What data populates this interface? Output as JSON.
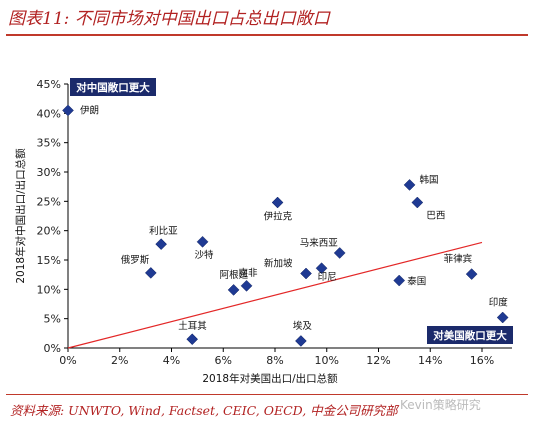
{
  "header": {
    "title": "图表11: 不同市场对中国出口占总出口敞口"
  },
  "footer": {
    "source": "资料来源: UNWTO, Wind, Factset, CEIC, OECD, 中金公司研究部",
    "watermark": "Kevin策略研究"
  },
  "chart_data": {
    "type": "scatter",
    "title": "图表11: 不同市场对中国出口占总出口敞口",
    "xlabel": "2018年对美国出口/出口总额",
    "ylabel": "2018年对中国出口/出口总额",
    "xlim": [
      0,
      0.17
    ],
    "ylim": [
      0,
      0.45
    ],
    "x_ticks": [
      "0%",
      "2%",
      "4%",
      "6%",
      "8%",
      "10%",
      "12%",
      "14%",
      "16%"
    ],
    "x_tick_values": [
      0,
      0.02,
      0.04,
      0.06,
      0.08,
      0.1,
      0.12,
      0.14,
      0.16
    ],
    "y_ticks": [
      "0%",
      "5%",
      "10%",
      "15%",
      "20%",
      "25%",
      "30%",
      "35%",
      "40%",
      "45%"
    ],
    "y_tick_values": [
      0,
      0.05,
      0.1,
      0.15,
      0.2,
      0.25,
      0.3,
      0.35,
      0.4,
      0.45
    ],
    "grid": false,
    "marker_color": "#1f3a93",
    "trend_color": "#e32727",
    "points": [
      {
        "label": "伊朗",
        "x": 0.0,
        "y": 0.405
      },
      {
        "label": "利比亚",
        "x": 0.036,
        "y": 0.177
      },
      {
        "label": "俄罗斯",
        "x": 0.032,
        "y": 0.128
      },
      {
        "label": "沙特",
        "x": 0.052,
        "y": 0.181
      },
      {
        "label": "南非",
        "x": 0.069,
        "y": 0.106
      },
      {
        "label": "阿根廷",
        "x": 0.064,
        "y": 0.099
      },
      {
        "label": "伊拉克",
        "x": 0.081,
        "y": 0.248
      },
      {
        "label": "土耳其",
        "x": 0.048,
        "y": 0.015
      },
      {
        "label": "埃及",
        "x": 0.09,
        "y": 0.012
      },
      {
        "label": "马来西亚",
        "x": 0.105,
        "y": 0.162
      },
      {
        "label": "新加坡",
        "x": 0.092,
        "y": 0.127
      },
      {
        "label": "印尼",
        "x": 0.098,
        "y": 0.136
      },
      {
        "label": "韩国",
        "x": 0.132,
        "y": 0.278
      },
      {
        "label": "巴西",
        "x": 0.135,
        "y": 0.248
      },
      {
        "label": "泰国",
        "x": 0.128,
        "y": 0.115
      },
      {
        "label": "菲律宾",
        "x": 0.156,
        "y": 0.126
      },
      {
        "label": "印度",
        "x": 0.168,
        "y": 0.052
      }
    ],
    "trendline": {
      "x": [
        0.0,
        0.16
      ],
      "y": [
        0.0,
        0.18
      ]
    },
    "annotations": [
      {
        "text": "对中国敞口更大",
        "corner": "top-left"
      },
      {
        "text": "对美国敞口更大",
        "corner": "bottom-right"
      }
    ]
  }
}
